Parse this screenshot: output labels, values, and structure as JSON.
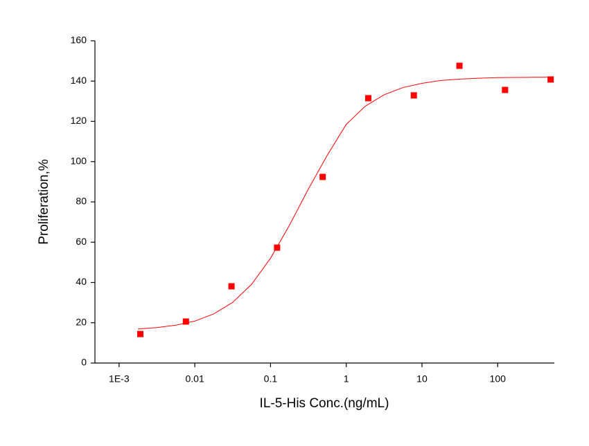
{
  "chart_data": {
    "type": "scatter",
    "x_label": "IL-5-His Conc.(ng/mL)",
    "y_label": "Proliferation,%",
    "xscale": "log",
    "xlim": [
      0.00048,
      560
    ],
    "ylim": [
      0,
      160
    ],
    "xticks": [
      {
        "value": 0.001,
        "label": "1E-3"
      },
      0.01,
      0.1,
      1,
      10,
      100
    ],
    "yticks": [
      0,
      20,
      40,
      60,
      80,
      100,
      120,
      140,
      160
    ],
    "series": [
      {
        "mode": "markers",
        "color": "#ff0000",
        "x": [
          0.0019073,
          0.0076294,
          0.030518,
          0.12207,
          0.48828,
          1.953125,
          7.8125,
          31.25,
          125,
          500
        ],
        "values": [
          14.4,
          20.6,
          38.1,
          57.3,
          92.4,
          131.5,
          132.9,
          147.6,
          135.6,
          140.8
        ]
      },
      {
        "mode": "line",
        "color": "#ff0000",
        "x": [
          0.001778,
          0.003162,
          0.005623,
          0.01,
          0.01778,
          0.03162,
          0.05623,
          0.1,
          0.1778,
          0.3162,
          0.5623,
          1,
          1.778,
          3.162,
          5.623,
          10,
          17.78,
          31.62,
          56.23,
          100,
          177.8,
          316.2,
          500
        ],
        "values": [
          16.9,
          17.6,
          18.8,
          20.8,
          24.4,
          30.1,
          39.1,
          52.0,
          68.4,
          86.4,
          103.2,
          118.5,
          127.5,
          133.2,
          136.8,
          138.9,
          140.3,
          141.0,
          141.4,
          141.7,
          141.8,
          141.9,
          141.9
        ]
      }
    ]
  }
}
